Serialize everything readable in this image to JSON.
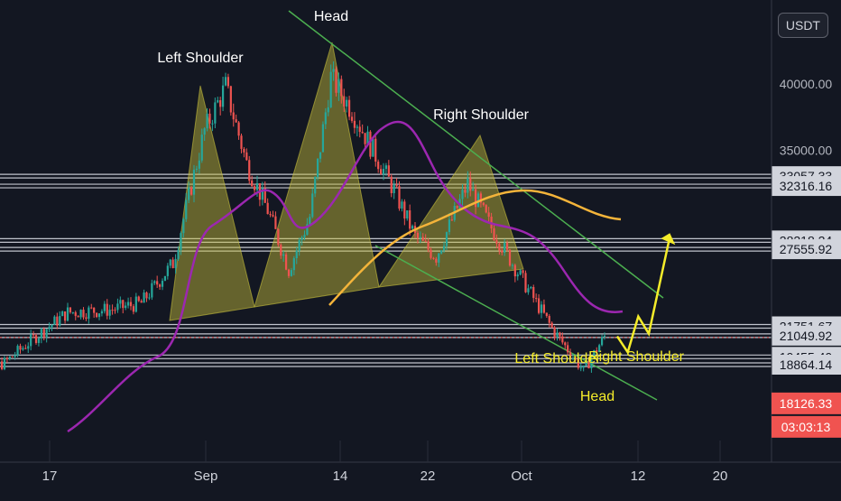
{
  "currency_badge": "USDT",
  "colors": {
    "background": "#131722",
    "up_candle": "#26a69a",
    "down_candle": "#ef5350",
    "pattern_fill": "#c9c13c",
    "ma_purple": "#9c27b0",
    "ma_orange": "#f4b43a",
    "channel_green": "#4caf50",
    "projection_yellow": "#f5ec2a",
    "price_badge_red": "#f05350",
    "level_line": "#c0c3cc"
  },
  "chart_data": {
    "type": "candlestick",
    "title": "",
    "xlabel": "",
    "ylabel": "",
    "grid": false,
    "x_ticks": [
      "17",
      "Sep",
      "14",
      "22",
      "Oct",
      "12",
      "20"
    ],
    "y_scale_labels": [
      "40000.00",
      "35000.00"
    ],
    "horizontal_levels": [
      {
        "label": "33057.33",
        "value": 33057.33
      },
      {
        "label": "32316.16",
        "value": 32316.16
      },
      {
        "label": "28218.24",
        "value": 28218.24
      },
      {
        "label": "27555.92",
        "value": 27555.92
      },
      {
        "label": "21751.67",
        "value": 21751.67
      },
      {
        "label": "21049.92",
        "value": 21049.92
      },
      {
        "label": "19455.40",
        "value": 19455.4
      },
      {
        "label": "18864.14",
        "value": 18864.14
      }
    ],
    "current_price": {
      "label": "18126.33",
      "value": 18126.33
    },
    "countdown": "03:03:13",
    "annotations": [
      {
        "text": "Head",
        "series": "macro_pattern"
      },
      {
        "text": "Left Shoulder",
        "series": "macro_pattern"
      },
      {
        "text": "Right Shoulder",
        "series": "macro_pattern"
      },
      {
        "text": "Left Shoulder",
        "series": "micro_pattern"
      },
      {
        "text": "Right Shoulder",
        "series": "micro_pattern"
      },
      {
        "text": "Head",
        "series": "micro_pattern"
      }
    ],
    "price_path": [
      [
        "Aug 10",
        17800
      ],
      [
        "Aug 14",
        19000
      ],
      [
        "Aug 17",
        21000
      ],
      [
        "Aug 20",
        22800
      ],
      [
        "Aug 24",
        23000
      ],
      [
        "Aug 27",
        23500
      ],
      [
        "Aug 30",
        26500
      ],
      [
        "Sep 2",
        36500
      ],
      [
        "Sep 4",
        39800
      ],
      [
        "Sep 6",
        34000
      ],
      [
        "Sep 8",
        30500
      ],
      [
        "Sep 10",
        26000
      ],
      [
        "Sep 12",
        30000
      ],
      [
        "Sep 14",
        40500
      ],
      [
        "Sep 16",
        38000
      ],
      [
        "Sep 18",
        35000
      ],
      [
        "Sep 20",
        32000
      ],
      [
        "Sep 22",
        28500
      ],
      [
        "Sep 24",
        27000
      ],
      [
        "Sep 27",
        32500
      ],
      [
        "Sep 29",
        29500
      ],
      [
        "Oct 2",
        25500
      ],
      [
        "Oct 5",
        21600
      ],
      [
        "Oct 8",
        18400
      ],
      [
        "Oct 10",
        21000
      ]
    ],
    "projection_path": [
      [
        "Oct 10",
        21000
      ],
      [
        "Oct 11",
        19800
      ],
      [
        "Oct 12",
        22500
      ],
      [
        "Oct 13",
        21200
      ],
      [
        "Oct 15",
        28500
      ]
    ]
  }
}
